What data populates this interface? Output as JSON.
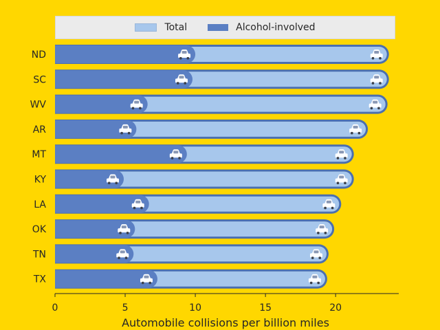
{
  "chart_data": {
    "type": "bar",
    "orientation": "horizontal",
    "categories": [
      "ND",
      "SC",
      "WV",
      "AR",
      "MT",
      "KY",
      "LA",
      "OK",
      "TN",
      "TX"
    ],
    "series": [
      {
        "name": "Total",
        "values": [
          23.8,
          23.8,
          23.7,
          22.3,
          21.3,
          21.3,
          20.4,
          19.9,
          19.5,
          19.4
        ]
      },
      {
        "name": "Alcohol-involved",
        "values": [
          10.0,
          9.8,
          6.6,
          5.8,
          9.4,
          4.9,
          6.7,
          5.7,
          5.6,
          7.3
        ]
      }
    ],
    "xlabel": "Automobile collisions per billion miles",
    "ylabel": "",
    "xlim": [
      0,
      24.5
    ],
    "xticks": [
      0,
      5,
      10,
      15,
      20
    ],
    "legend_position": "top",
    "grid": false,
    "colors": {
      "total": "#A7C7EC",
      "alcohol": "#5B7FC3",
      "background": "#FFD700",
      "legend_bg": "#EBEBEB"
    },
    "icon": "car-icon"
  }
}
